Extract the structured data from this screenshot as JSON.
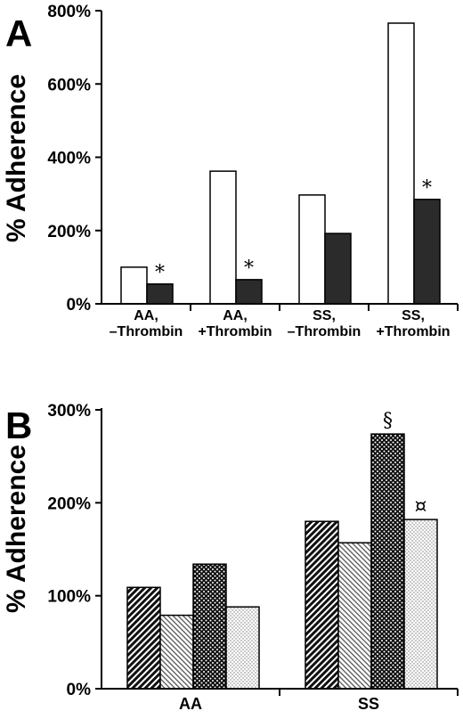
{
  "chart_data": [
    {
      "panel": "A",
      "type": "bar",
      "ylabel": "% Adherence",
      "ylim": [
        0,
        800
      ],
      "yticks": [
        "0%",
        "200%",
        "400%",
        "600%",
        "800%"
      ],
      "yticks_values": [
        0,
        200,
        400,
        600,
        800
      ],
      "categories": [
        [
          "AA,",
          "–Thrombin"
        ],
        [
          "AA,",
          "+Thrombin"
        ],
        [
          "SS,",
          "–Thrombin"
        ],
        [
          "SS,",
          "+Thrombin"
        ]
      ],
      "series": [
        {
          "values": [
            100,
            362,
            297,
            766
          ],
          "fill": "#ffffff"
        },
        {
          "values": [
            54,
            66,
            192,
            285
          ],
          "fill": "#2b2b2b"
        }
      ],
      "annotations": [
        {
          "text": "*",
          "category": 0,
          "series": 1
        },
        {
          "text": "*",
          "category": 1,
          "series": 1
        },
        {
          "text": "*",
          "category": 3,
          "series": 1
        }
      ]
    },
    {
      "panel": "B",
      "type": "bar",
      "ylabel": "% Adherence",
      "ylim": [
        0,
        300
      ],
      "yticks": [
        "0%",
        "100%",
        "200%",
        "300%"
      ],
      "yticks_values": [
        0,
        100,
        200,
        300
      ],
      "categories": [
        "AA",
        "SS"
      ],
      "series": [
        {
          "values": [
            109,
            180
          ],
          "pattern": "diag-dark"
        },
        {
          "values": [
            79,
            157
          ],
          "pattern": "diag-light"
        },
        {
          "values": [
            134,
            274
          ],
          "pattern": "dots-dark"
        },
        {
          "values": [
            88,
            182
          ],
          "pattern": "dots-light"
        }
      ],
      "annotations": [
        {
          "text": "§",
          "category": 1,
          "series": 2
        },
        {
          "text": "¤",
          "category": 1,
          "series": 3
        }
      ]
    }
  ]
}
